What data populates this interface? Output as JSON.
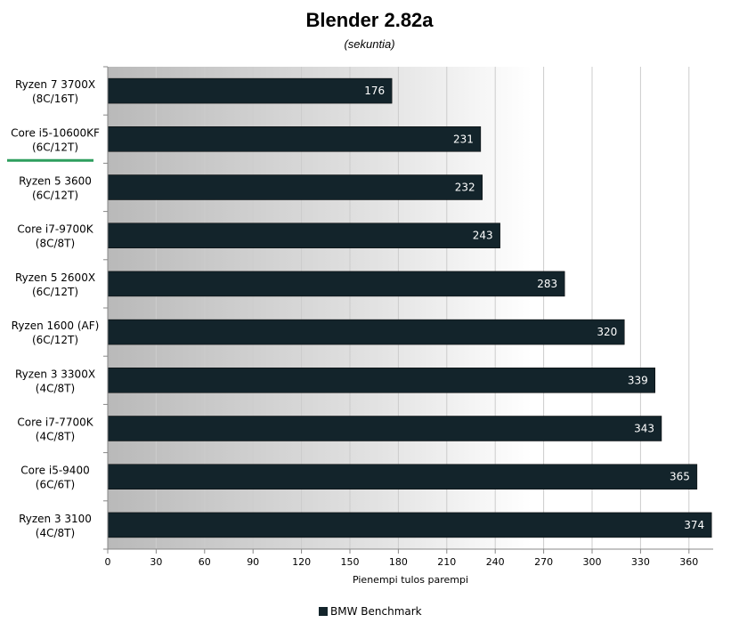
{
  "chart_data": {
    "type": "bar",
    "orientation": "horizontal",
    "title": "Blender 2.82a",
    "subtitle": "(sekuntia)",
    "xlabel": "Pienempi tulos parempi",
    "categories": [
      [
        "Ryzen 7 3700X",
        "(8C/16T)"
      ],
      [
        "Core i5-10600KF",
        "(6C/12T)"
      ],
      [
        "Ryzen 5 3600",
        "(6C/12T)"
      ],
      [
        "Core i7-9700K",
        "(8C/8T)"
      ],
      [
        "Ryzen 5 2600X",
        "(6C/12T)"
      ],
      [
        "Ryzen 1600 (AF)",
        "(6C/12T)"
      ],
      [
        "Ryzen 3 3300X",
        "(4C/8T)"
      ],
      [
        "Core i7-7700K",
        "(4C/8T)"
      ],
      [
        "Core i5-9400",
        "(6C/6T)"
      ],
      [
        "Ryzen 3 3100",
        "(4C/8T)"
      ]
    ],
    "highlighted_category": "Core i5-10600KF",
    "series": [
      {
        "name": "BMW Benchmark",
        "values": [
          176,
          231,
          232,
          243,
          283,
          320,
          339,
          343,
          365,
          374
        ]
      }
    ],
    "xlim": [
      0,
      375
    ],
    "xticks": [
      0,
      30,
      60,
      90,
      120,
      150,
      180,
      210,
      240,
      270,
      300,
      330,
      360
    ],
    "grid": "vertical",
    "legend": "bottom-center",
    "colors": {
      "bar": "#13242B",
      "bar_label": "#FFFFFF",
      "highlight_line": "#2E9E5E",
      "grid": "#CCCCCC"
    }
  }
}
